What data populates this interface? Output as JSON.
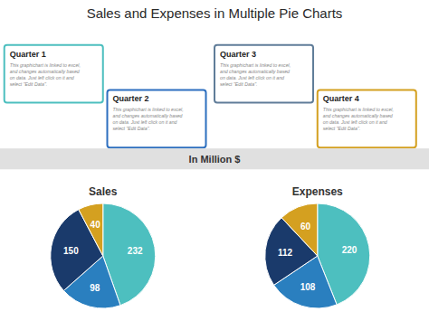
{
  "title": "Sales and Expenses in Multiple Pie Charts",
  "subtitle": "In Million $",
  "annotations": [
    {
      "title": "Quarter 1",
      "text": "This graphichart is linked to excel,\nand changes automatically based\non data. Just left click on it and\nselect \"Edit Data\".",
      "color": "#4dbfbf"
    },
    {
      "title": "Quarter 3",
      "text": "This graphichart is linked to excel,\nand changes automatically based\non data. Just left click on it and\nselect \"Edit Data\".",
      "color": "#607d99"
    },
    {
      "title": "Quarter 2",
      "text": "This graphichart is linked to excel,\nand changes automatically based\non data. Just left click on it and\nselect \"Edit Data\".",
      "color": "#2d6fbf"
    },
    {
      "title": "Quarter 4",
      "text": "This graphichart is linked to excel,\nand changes automatically based\non data. Just left click on it and\nselect \"Edit Data\".",
      "color": "#d4a020"
    }
  ],
  "chart_data": [
    {
      "type": "pie",
      "title": "Sales",
      "values": [
        232,
        98,
        150,
        40
      ],
      "colors": [
        "#4dbfbf",
        "#2a7fbf",
        "#1a3a6b",
        "#d4a020"
      ],
      "data_labels": true
    },
    {
      "type": "pie",
      "title": "Expenses",
      "values": [
        220,
        108,
        112,
        60
      ],
      "colors": [
        "#4dbfbf",
        "#2a7fbf",
        "#1a3a6b",
        "#d4a020"
      ],
      "data_labels": true
    }
  ]
}
